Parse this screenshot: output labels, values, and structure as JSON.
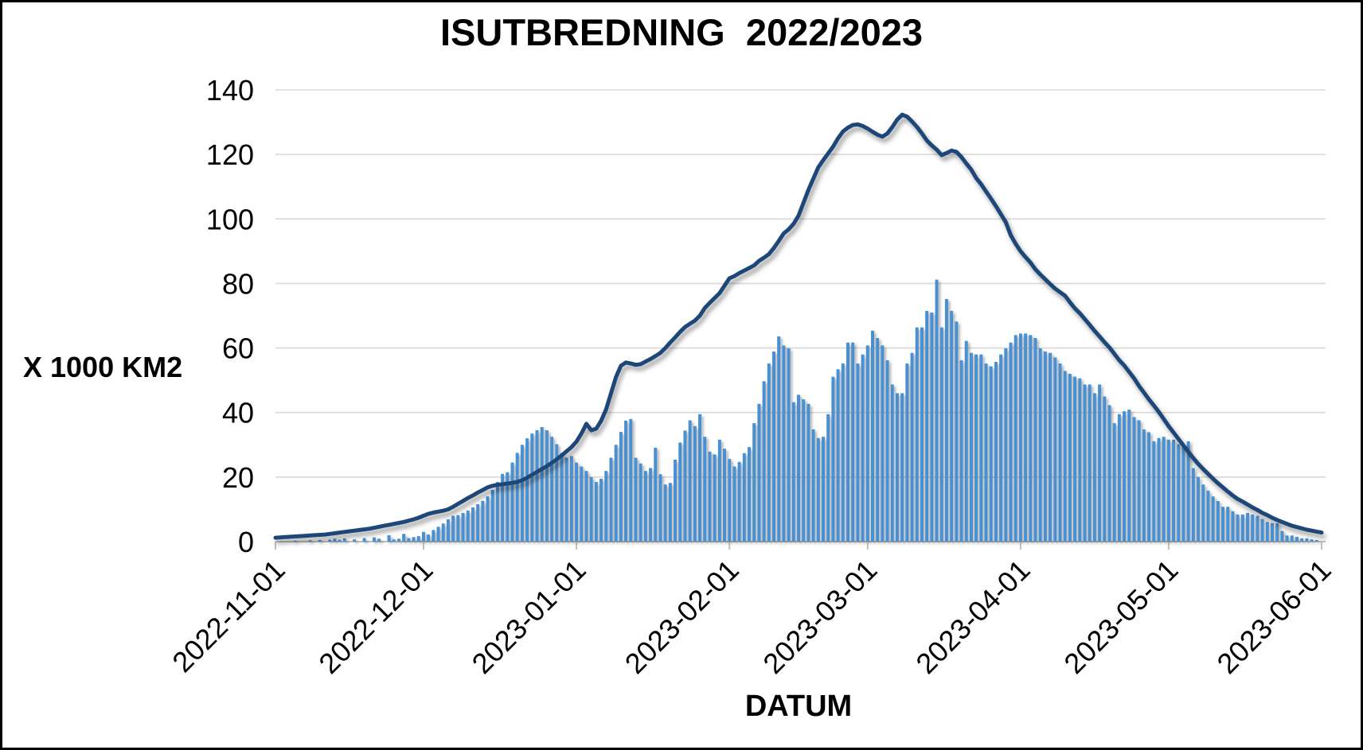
{
  "title": "ISUTBREDNING  2022/2023",
  "chart_data": {
    "type": "composite",
    "title": "ISUTBREDNING  2022/2023",
    "xlabel": "DATUM",
    "ylabel": "X 1000 KM2",
    "ylim": [
      0,
      140
    ],
    "y_ticks": [
      0,
      20,
      40,
      60,
      80,
      100,
      120,
      140
    ],
    "grid": true,
    "legend": "none",
    "start_date": "2022-11-01",
    "end_date": "2023-06-01",
    "days_total": 212,
    "x_tick_labels": [
      "2022-11-01",
      "2022-12-01",
      "2023-01-01",
      "2023-02-01",
      "2023-03-01",
      "2023-04-01",
      "2023-05-01",
      "2023-06-01"
    ],
    "x_tick_day_index": [
      0,
      30,
      61,
      92,
      120,
      151,
      181,
      212
    ],
    "series": [
      {
        "name": "ice-extent-line",
        "type": "line",
        "color": "#1f4678",
        "values": [
          1.2,
          1.3,
          1.4,
          1.5,
          1.6,
          1.7,
          1.8,
          1.9,
          2.0,
          2.1,
          2.2,
          2.4,
          2.6,
          2.8,
          3.0,
          3.2,
          3.4,
          3.6,
          3.8,
          4.0,
          4.3,
          4.6,
          4.9,
          5.2,
          5.5,
          5.8,
          6.1,
          6.5,
          6.9,
          7.4,
          8.0,
          8.6,
          9.0,
          9.3,
          9.6,
          10.0,
          10.8,
          11.7,
          12.6,
          13.5,
          14.3,
          15.2,
          16.0,
          16.8,
          17.3,
          17.6,
          17.8,
          18.0,
          18.2,
          18.5,
          19.0,
          19.8,
          20.7,
          21.6,
          22.5,
          23.4,
          24.4,
          25.5,
          26.7,
          28.0,
          29.3,
          31.0,
          33.5,
          36.5,
          34.5,
          35.0,
          37.5,
          41.0,
          46.0,
          51.0,
          54.5,
          55.5,
          55.2,
          54.8,
          55.0,
          55.8,
          56.6,
          57.5,
          58.5,
          60.0,
          61.7,
          63.3,
          65.0,
          66.5,
          67.5,
          68.5,
          70.0,
          72.4,
          74.0,
          75.5,
          77.0,
          79.3,
          81.6,
          82.3,
          83.2,
          84.0,
          84.8,
          85.6,
          87.0,
          88.0,
          89.1,
          91.0,
          93.2,
          95.5,
          96.8,
          98.5,
          101.0,
          105.0,
          109.0,
          112.5,
          116.0,
          118.2,
          120.3,
          122.4,
          125.0,
          127.1,
          128.3,
          129.1,
          129.3,
          128.8,
          128.0,
          127.0,
          126.1,
          125.5,
          126.5,
          128.5,
          130.8,
          132.3,
          131.7,
          130.2,
          128.5,
          126.5,
          124.3,
          122.8,
          121.5,
          119.8,
          120.4,
          121.2,
          120.8,
          119.2,
          117.2,
          115.3,
          112.7,
          110.8,
          108.5,
          106.3,
          104.0,
          101.5,
          99.0,
          95.0,
          92.3,
          90.0,
          88.2,
          86.5,
          84.4,
          82.8,
          81.3,
          79.8,
          78.4,
          77.3,
          76.2,
          74.2,
          72.3,
          70.8,
          69.0,
          67.2,
          65.3,
          63.6,
          61.8,
          60.2,
          58.2,
          56.2,
          54.6,
          52.6,
          50.6,
          48.2,
          46.2,
          44.1,
          42.2,
          40.2,
          38.0,
          35.8,
          33.8,
          31.8,
          29.8,
          27.8,
          25.9,
          24.1,
          22.5,
          21.0,
          19.5,
          18.1,
          16.8,
          15.5,
          14.3,
          13.2,
          12.4,
          11.5,
          10.6,
          9.8,
          8.9,
          8.2,
          7.4,
          6.7,
          6.1,
          5.5,
          4.9,
          4.5,
          4.1,
          3.7,
          3.4,
          3.1,
          2.8
        ]
      },
      {
        "name": "daily-ice-bars",
        "type": "bar",
        "color": "#4a90d2",
        "values": [
          0,
          0,
          0,
          0,
          0.3,
          0,
          0,
          0.4,
          0,
          0.5,
          0,
          0.6,
          0.9,
          0.6,
          1.0,
          0,
          0.7,
          0,
          1.1,
          0,
          1.3,
          0.9,
          0,
          2.0,
          0.7,
          0.9,
          2.4,
          1.1,
          1.4,
          1.7,
          3.0,
          2.2,
          3.6,
          4.6,
          5.6,
          6.9,
          8.0,
          8.2,
          8.9,
          9.6,
          10.6,
          11.6,
          12.6,
          14.0,
          16.0,
          18.5,
          21.0,
          21.5,
          24.5,
          27.5,
          30.0,
          32.0,
          33.5,
          34.5,
          35.5,
          34.5,
          32.5,
          30.2,
          27.5,
          26.0,
          26.5,
          24.5,
          23.3,
          21.9,
          20.0,
          18.5,
          19.5,
          21.9,
          26.0,
          30.0,
          34.0,
          37.5,
          38.0,
          26.0,
          24.2,
          21.9,
          22.8,
          29.1,
          20.9,
          17.7,
          18.2,
          25.4,
          30.7,
          34.4,
          37.6,
          35.8,
          39.5,
          32.5,
          27.9,
          27.0,
          31.6,
          28.8,
          25.6,
          23.3,
          24.7,
          27.4,
          29.3,
          36.7,
          42.7,
          49.7,
          55.2,
          58.9,
          63.6,
          60.8,
          59.9,
          43.2,
          45.5,
          44.1,
          42.7,
          34.8,
          32.1,
          32.5,
          39.5,
          51.1,
          53.4,
          55.2,
          61.7,
          61.7,
          55.2,
          58.0,
          60.8,
          65.4,
          63.1,
          60.8,
          56.2,
          48.7,
          46.0,
          46.0,
          55.2,
          58.5,
          66.4,
          66.4,
          71.5,
          71.0,
          81.2,
          66.4,
          75.2,
          71.5,
          68.2,
          56.2,
          62.2,
          58.5,
          58.0,
          58.0,
          55.2,
          54.3,
          55.7,
          58.0,
          59.9,
          61.7,
          64.0,
          64.5,
          64.5,
          64.0,
          63.1,
          59.9,
          58.9,
          58.5,
          57.1,
          55.2,
          52.9,
          52.0,
          51.1,
          50.6,
          48.7,
          48.7,
          46.0,
          48.7,
          45.0,
          42.3,
          36.7,
          39.5,
          40.4,
          40.9,
          38.6,
          37.6,
          34.8,
          33.9,
          31.1,
          32.1,
          32.5,
          31.6,
          31.6,
          30.2,
          29.8,
          31.1,
          22.8,
          20.0,
          17.7,
          15.8,
          14.0,
          12.6,
          10.8,
          10.8,
          9.4,
          8.4,
          8.4,
          8.9,
          8.4,
          8.0,
          7.0,
          6.1,
          5.7,
          5.7,
          3.3,
          1.9,
          1.9,
          1.5,
          1.0,
          1.0,
          0.7,
          0.5,
          0
        ]
      }
    ]
  },
  "colors": {
    "background": "#ffffff",
    "border": "#000000",
    "gridline": "#d9d9d9",
    "axis_line": "#bfbfbf",
    "line_series": "#1f4678",
    "bar_series": "#4a90d2",
    "text": "#000000"
  }
}
